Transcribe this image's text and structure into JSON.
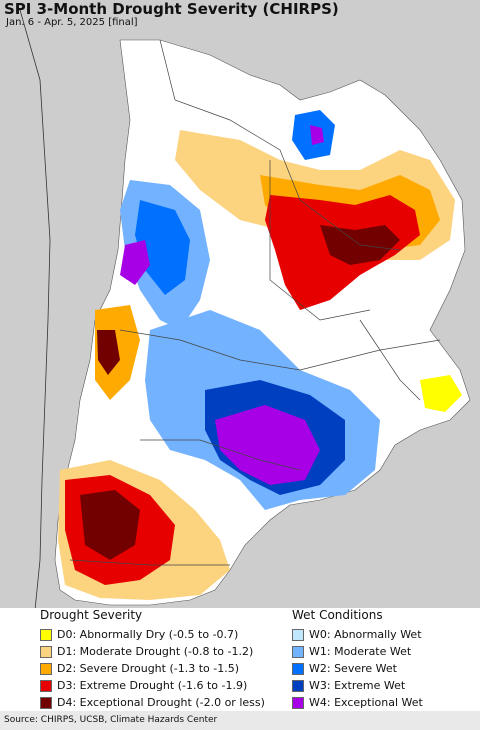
{
  "header": {
    "title": "SPI 3-Month Drought Severity (CHIRPS)",
    "subtitle": "Jan. 6 - Apr. 5, 2025 [final]"
  },
  "legend": {
    "drought": {
      "title": "Drought Severity",
      "items": [
        {
          "label": "D0: Abnormally Dry (-0.5 to -0.7)",
          "color": "#ffff00"
        },
        {
          "label": "D1: Moderate Drought (-0.8 to -1.2)",
          "color": "#fcd37f"
        },
        {
          "label": "D2: Severe Drought (-1.3 to -1.5)",
          "color": "#ffaa00"
        },
        {
          "label": "D3: Extreme Drought (-1.6 to -1.9)",
          "color": "#e60000"
        },
        {
          "label": "D4: Exceptional Drought (-2.0 or less)",
          "color": "#730000"
        }
      ]
    },
    "wet": {
      "title": "Wet Conditions",
      "items": [
        {
          "label": "W0: Abnormally Wet",
          "color": "#bfe8ff"
        },
        {
          "label": "W1: Moderate Wet",
          "color": "#73b2ff"
        },
        {
          "label": "W2: Severe Wet",
          "color": "#0070ff"
        },
        {
          "label": "W3: Extreme Wet",
          "color": "#0040c0"
        },
        {
          "label": "W4: Exceptional Wet",
          "color": "#a800e6"
        }
      ]
    }
  },
  "footer": {
    "source": "Source: CHIRPS, UCSB, Climate Hazards Center"
  }
}
